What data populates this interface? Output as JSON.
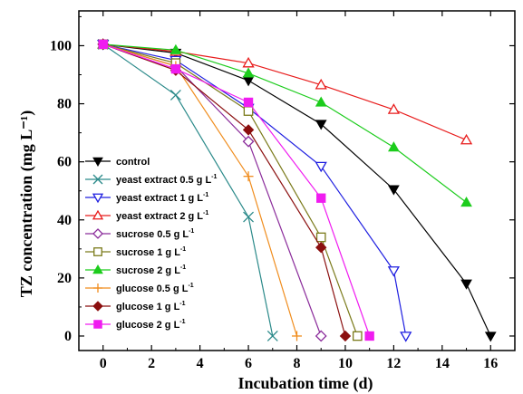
{
  "chart_data": {
    "type": "line",
    "xlabel": "Incubation time (d)",
    "ylabel": "TZ concentration (mg L⁻¹)",
    "xlim": [
      -1,
      17
    ],
    "ylim": [
      -5,
      112
    ],
    "xticks": [
      0,
      2,
      4,
      6,
      8,
      10,
      12,
      14,
      16
    ],
    "yticks": [
      0,
      20,
      40,
      60,
      80,
      100
    ],
    "grid": false,
    "legend_position": "bottom-left",
    "series": [
      {
        "name": "control",
        "name_sup": "",
        "color": "#000000",
        "marker": "triangle-down-filled",
        "x": [
          0,
          3,
          6,
          9,
          12,
          15,
          16
        ],
        "y": [
          100.5,
          97.5,
          88,
          73,
          50.5,
          18,
          0
        ]
      },
      {
        "name": "yeast extract 0.5 g L",
        "name_sup": "-1",
        "color": "#2b8a8a",
        "marker": "x",
        "x": [
          0,
          3,
          6,
          7
        ],
        "y": [
          100.5,
          83,
          41,
          0
        ]
      },
      {
        "name": "yeast extract 1 g L",
        "name_sup": "-1",
        "color": "#1f1fe0",
        "marker": "triangle-down-open",
        "x": [
          0,
          3,
          6,
          9,
          12,
          12.5
        ],
        "y": [
          100.5,
          95,
          78.5,
          58.5,
          22.5,
          0
        ]
      },
      {
        "name": "yeast extract 2 g L",
        "name_sup": "-1",
        "color": "#e81c1c",
        "marker": "triangle-up-open",
        "x": [
          0,
          3,
          6,
          9,
          12,
          15
        ],
        "y": [
          100.5,
          98,
          94,
          86.5,
          78,
          67.5
        ]
      },
      {
        "name": "sucrose 0.5 g L",
        "name_sup": "-1",
        "color": "#8b2c9b",
        "marker": "diamond-open",
        "x": [
          0,
          3,
          6,
          9
        ],
        "y": [
          100.5,
          93,
          67,
          0
        ]
      },
      {
        "name": "sucrose 1 g L",
        "name_sup": "-1",
        "color": "#7a7a1a",
        "marker": "square-open",
        "x": [
          0,
          3,
          6,
          9,
          10.5
        ],
        "y": [
          100.5,
          94,
          77.5,
          34,
          0
        ]
      },
      {
        "name": "sucrose 2 g L",
        "name_sup": "-1",
        "color": "#1ccc1c",
        "marker": "triangle-up-filled",
        "x": [
          0,
          3,
          6,
          9,
          12,
          15
        ],
        "y": [
          100.5,
          98.5,
          90.5,
          80.5,
          65,
          46
        ]
      },
      {
        "name": "glucose 0.5 g L",
        "name_sup": "-1",
        "color": "#f08c1c",
        "marker": "plus",
        "x": [
          0,
          3,
          6,
          8
        ],
        "y": [
          100.5,
          93,
          55,
          0
        ]
      },
      {
        "name": "glucose 1 g L",
        "name_sup": "-1",
        "color": "#8b0f0f",
        "marker": "diamond-filled",
        "x": [
          0,
          3,
          6,
          9,
          10
        ],
        "y": [
          100.5,
          91.5,
          71,
          30.5,
          0
        ]
      },
      {
        "name": "glucose 2 g L",
        "name_sup": "-1",
        "color": "#f01cf0",
        "marker": "square-filled",
        "x": [
          0,
          3,
          6,
          9,
          11
        ],
        "y": [
          100.5,
          92,
          80.5,
          47.5,
          0
        ]
      }
    ]
  }
}
